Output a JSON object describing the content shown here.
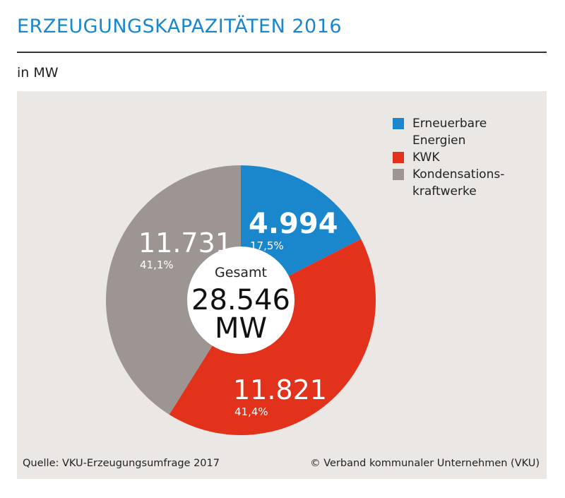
{
  "title": "ERZEUGUNGSKAPAZITÄTEN 2016",
  "unit": "in MW",
  "source": "Quelle: VKU-Erzeugungsumfrage 2017",
  "copyright": "© Verband kommunaler Unternehmen (VKU)",
  "chart_data": {
    "type": "pie",
    "title": "ERZEUGUNGSKAPAZITÄTEN 2016",
    "unit": "MW",
    "center_label": "Gesamt",
    "total_value": "28.546",
    "total_unit": "MW",
    "legend_position": "top-right",
    "series": [
      {
        "name": "Erneuerbare\nEnergien",
        "value": 4994,
        "value_label": "4.994",
        "percent_label": "17,5%",
        "color": "#1a87cd"
      },
      {
        "name": "KWK",
        "value": 11821,
        "value_label": "11.821",
        "percent_label": "41,4%",
        "color": "#e2321c"
      },
      {
        "name": "Kondensations-\nkraftwerke",
        "value": 11731,
        "value_label": "11.731",
        "percent_label": "41,1%",
        "color": "#9d9591"
      }
    ]
  }
}
